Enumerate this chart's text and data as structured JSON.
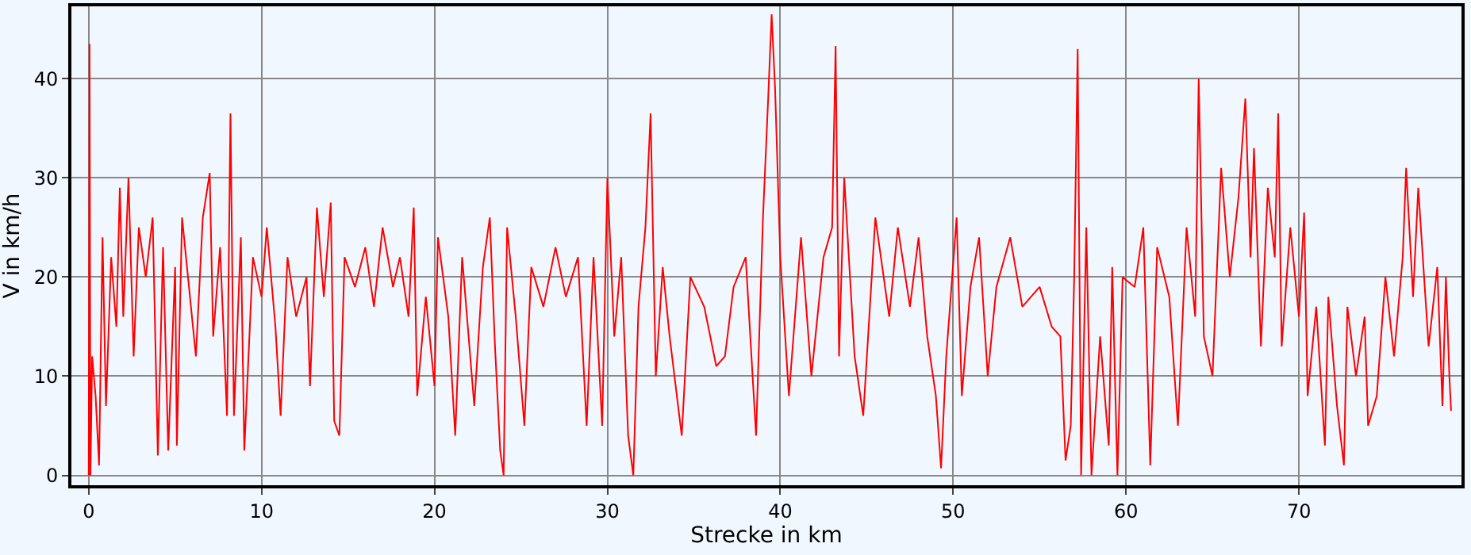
{
  "chart_data": {
    "type": "line",
    "xlabel": "Strecke in km",
    "ylabel": "V in km/h",
    "xlim": [
      -1,
      79.4
    ],
    "ylim": [
      -1,
      47.3
    ],
    "xticks": [
      0,
      10,
      20,
      30,
      40,
      50,
      60,
      70
    ],
    "yticks": [
      0,
      10,
      20,
      30,
      40
    ],
    "grid": true,
    "legend": false,
    "marker": "none",
    "line_style": "solid",
    "series": [
      {
        "color": "#ff0000",
        "x": [
          0,
          0.05,
          0.1,
          0.2,
          0.4,
          0.6,
          0.8,
          1.0,
          1.3,
          1.6,
          1.8,
          2.0,
          2.3,
          2.6,
          2.9,
          3.3,
          3.7,
          4.0,
          4.3,
          4.6,
          5.0,
          5.1,
          5.4,
          5.8,
          6.2,
          6.6,
          7.0,
          7.2,
          7.6,
          8.0,
          8.2,
          8.4,
          8.8,
          9.0,
          9.5,
          10.0,
          10.3,
          10.8,
          11.1,
          11.5,
          12.0,
          12.6,
          12.8,
          13.2,
          13.6,
          14.0,
          14.2,
          14.5,
          14.8,
          15.4,
          16.0,
          16.5,
          17.0,
          17.6,
          18.0,
          18.5,
          18.8,
          19.0,
          19.5,
          20.0,
          20.2,
          20.8,
          21.2,
          21.6,
          22.3,
          22.8,
          23.2,
          23.5,
          23.8,
          24.0,
          24.2,
          24.7,
          25.2,
          25.6,
          26.3,
          27.0,
          27.6,
          28.3,
          28.8,
          29.2,
          29.7,
          30.0,
          30.4,
          30.8,
          31.2,
          31.5,
          31.8,
          32.2,
          32.5,
          32.8,
          33.2,
          33.6,
          34.3,
          34.8,
          35.6,
          36.3,
          36.8,
          37.3,
          38.0,
          38.6,
          39.0,
          39.3,
          39.5,
          39.7,
          40.0,
          40.5,
          41.2,
          41.8,
          42.5,
          43.0,
          43.2,
          43.4,
          43.7,
          44.3,
          44.8,
          45.5,
          46.3,
          46.8,
          47.5,
          48.0,
          48.5,
          49.0,
          49.3,
          49.6,
          50.2,
          50.5,
          51.0,
          51.5,
          52.0,
          52.5,
          53.3,
          54.0,
          55.0,
          55.7,
          56.2,
          56.5,
          56.8,
          57.0,
          57.2,
          57.4,
          57.7,
          58.0,
          58.5,
          59.0,
          59.2,
          59.5,
          59.8,
          60.5,
          61.0,
          61.4,
          61.8,
          62.5,
          63.0,
          63.5,
          64.0,
          64.2,
          64.5,
          65.0,
          65.5,
          66.0,
          66.5,
          66.9,
          67.2,
          67.4,
          67.8,
          68.2,
          68.6,
          68.8,
          69.0,
          69.5,
          70.0,
          70.3,
          70.5,
          71.0,
          71.5,
          71.7,
          72.2,
          72.6,
          72.8,
          73.3,
          73.8,
          74.0,
          74.5,
          75.0,
          75.5,
          76.0,
          76.2,
          76.6,
          76.9,
          77.5,
          78.0,
          78.3,
          78.5,
          78.7,
          78.8
        ],
        "values": [
          0,
          43.5,
          0,
          12,
          8,
          1,
          24,
          7,
          22,
          15,
          29,
          16,
          30,
          12,
          25,
          20,
          26,
          2,
          23,
          2.5,
          21,
          3,
          26,
          19,
          12,
          26,
          30.5,
          14,
          23,
          6,
          36.5,
          6,
          24,
          2.5,
          22,
          18,
          25,
          15,
          6,
          22,
          16,
          20,
          9,
          27,
          18,
          27.5,
          5.5,
          4,
          22,
          19,
          23,
          17,
          25,
          19,
          22,
          16,
          27,
          8,
          18,
          9,
          24,
          16,
          4,
          22,
          7,
          21,
          26,
          13,
          2.5,
          0,
          25,
          16,
          5,
          21,
          17,
          23,
          18,
          22,
          5,
          22,
          5,
          30,
          14,
          22,
          4,
          0,
          17,
          25,
          36.5,
          10,
          21,
          14,
          4,
          20,
          17,
          11,
          12,
          19,
          22,
          4,
          26,
          38,
          46.5,
          39,
          22,
          8,
          24,
          10,
          22,
          25,
          43.3,
          12,
          30,
          12,
          6,
          26,
          16,
          25,
          17,
          24,
          14,
          8,
          0.7,
          12,
          26,
          8,
          19,
          24,
          10,
          19,
          24,
          17,
          19,
          15,
          14,
          1.5,
          5,
          20,
          43,
          0,
          25,
          0,
          14,
          3,
          21,
          0,
          20,
          19,
          25,
          1,
          23,
          18,
          5,
          25,
          16,
          40,
          14,
          10,
          31,
          20,
          28,
          38,
          22,
          33,
          13,
          29,
          22,
          36.5,
          13,
          25,
          16,
          26.5,
          8,
          17,
          3,
          18,
          7,
          1,
          17,
          10,
          16,
          5,
          8,
          20,
          12,
          22,
          31,
          18,
          29,
          13,
          21,
          7,
          20,
          10,
          6.5
        ]
      }
    ]
  }
}
